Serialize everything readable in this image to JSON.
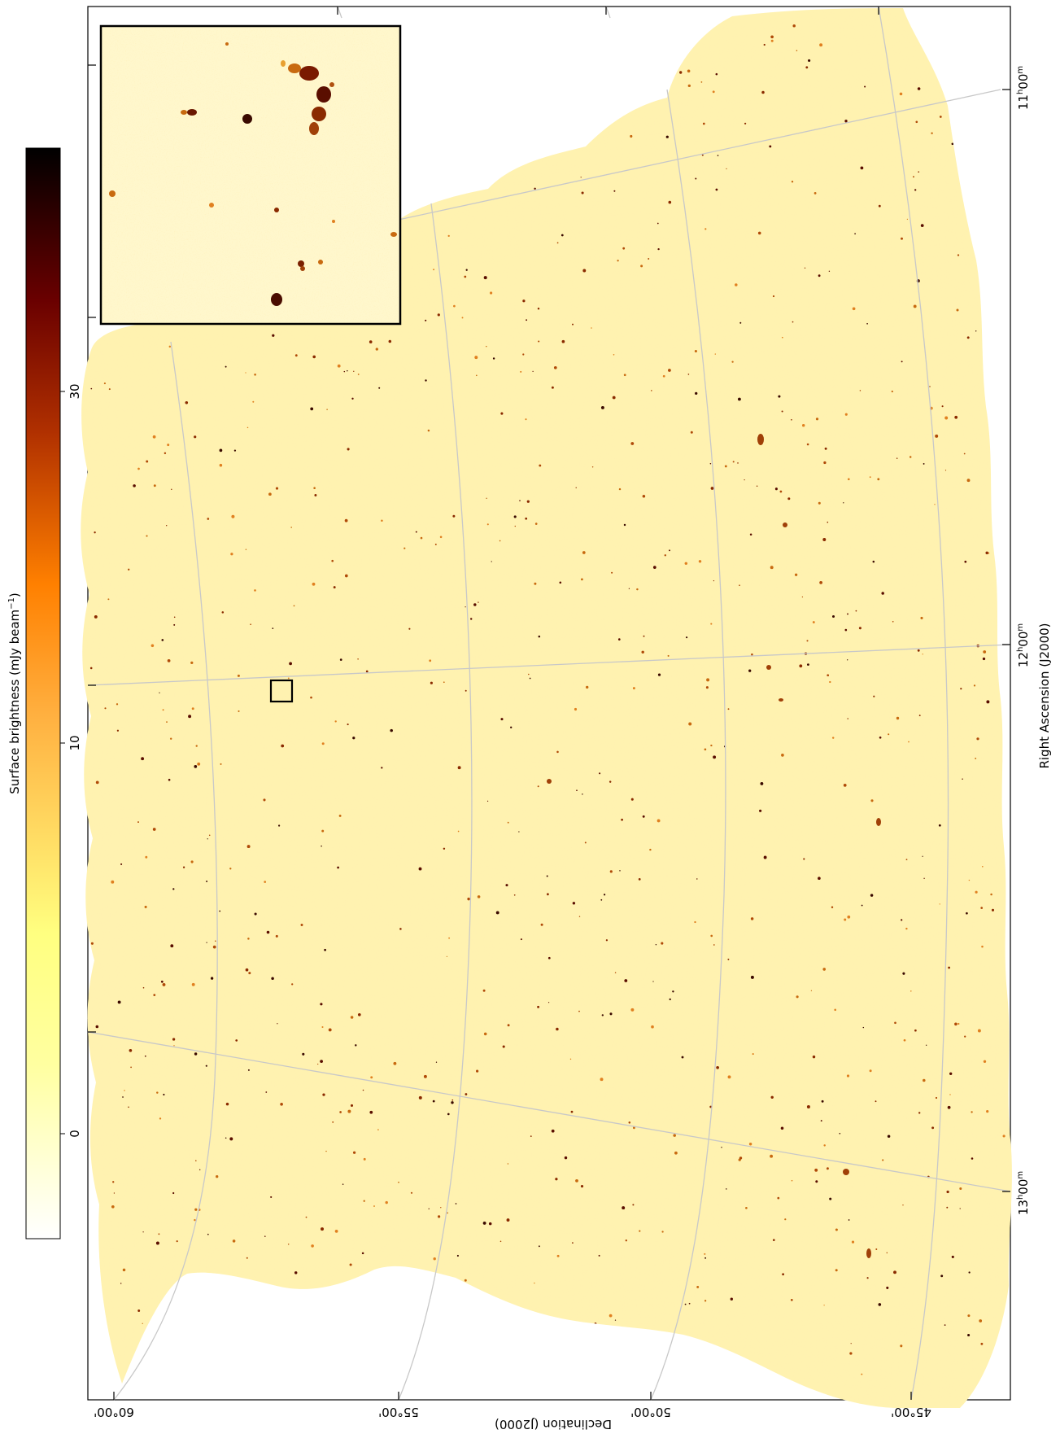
{
  "colorbar": {
    "label_pre": "Surface brightness (mJy beam",
    "label_sup": "−1",
    "label_post": ")",
    "ticks": [
      {
        "value": 0,
        "label": "0"
      },
      {
        "value": 10,
        "label": "10"
      },
      {
        "value": 30,
        "label": "30"
      }
    ],
    "colormap": "afmhot_r",
    "stops": [
      "#ffffff",
      "#ffff80",
      "#ff8000",
      "#800000",
      "#000000"
    ]
  },
  "axes": {
    "x_label": "Declination (J2000)",
    "y_label": "Right Ascension (J2000)",
    "dec_ticks": [
      {
        "label": "60°00'"
      },
      {
        "label": "55°00'"
      },
      {
        "label": "50°00'"
      },
      {
        "label": "45°00'"
      }
    ],
    "ra_ticks": [
      {
        "h": "11",
        "m": "00"
      },
      {
        "h": "12",
        "m": "00"
      },
      {
        "h": "13",
        "m": "00"
      }
    ],
    "grid_color": "#c8c8c8"
  },
  "image": {
    "type": "radio continuum mosaic",
    "background_color": "#fff2b0",
    "source_color": "#8a2a00"
  },
  "inset": {
    "border_color": "#000000"
  }
}
